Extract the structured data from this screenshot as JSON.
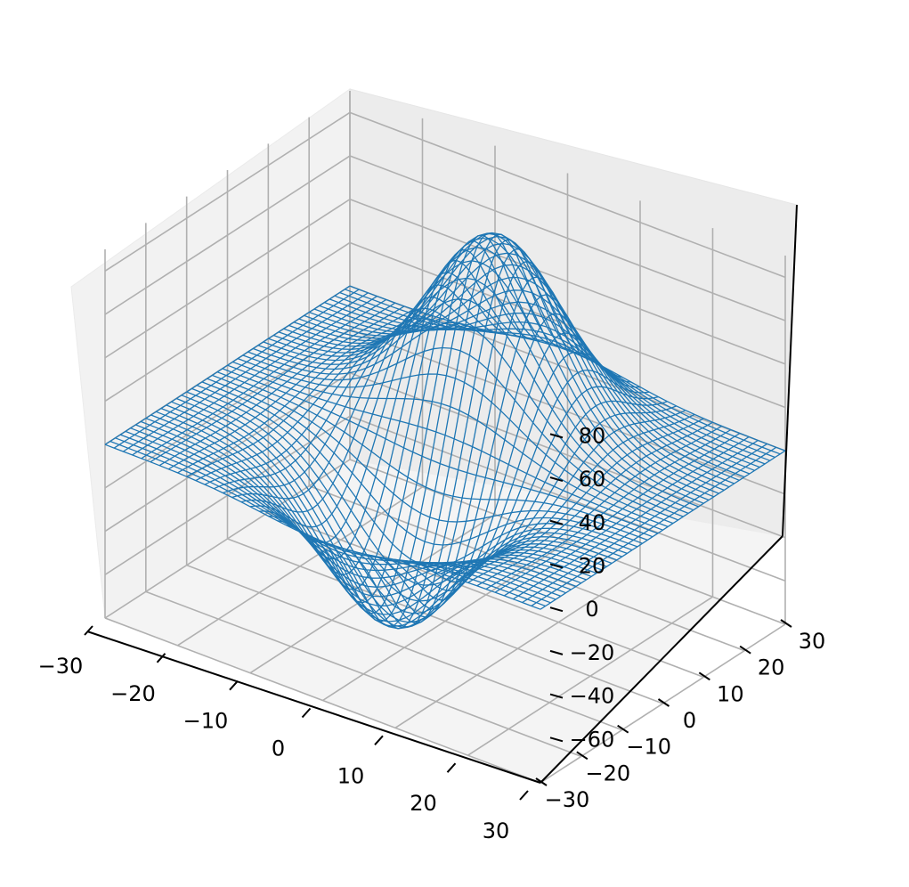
{
  "chart_data": {
    "type": "surface-3d-wireframe",
    "title": "",
    "xlabel": "",
    "ylabel": "",
    "zlabel": "",
    "xlim": [
      -30,
      30
    ],
    "ylim": [
      -30,
      30
    ],
    "zlim": [
      -80,
      90
    ],
    "x_ticks": [
      -30,
      -20,
      -10,
      0,
      10,
      20,
      30
    ],
    "y_ticks": [
      -30,
      -20,
      -10,
      0,
      10,
      20,
      30
    ],
    "z_ticks": [
      -60,
      -40,
      -20,
      0,
      20,
      40,
      60,
      80
    ],
    "x_tick_labels": [
      "−30",
      "−20",
      "−10",
      "0",
      "10",
      "20",
      "30"
    ],
    "y_tick_labels": [
      "−30",
      "−20",
      "−10",
      "0",
      "10",
      "20",
      "30"
    ],
    "z_tick_labels": [
      "−60",
      "−40",
      "−20",
      "0",
      "20",
      "40",
      "60",
      "80"
    ],
    "grid": true,
    "series_color": "#1f77b4",
    "surface_grid": {
      "x_range": [
        -30,
        30
      ],
      "y_range": [
        -30,
        30
      ],
      "steps": 48
    },
    "features": [
      {
        "kind": "peak",
        "x": 0,
        "y": 12,
        "z": 84
      },
      {
        "kind": "trough",
        "x": 0,
        "y": -12,
        "z": -68
      }
    ]
  }
}
